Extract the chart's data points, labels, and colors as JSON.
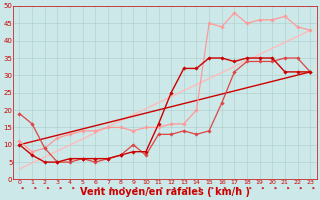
{
  "bg_color": "#cce8e8",
  "grid_color": "#aacccc",
  "xlabel": "Vent moyen/en rafales ( km/h )",
  "xlabel_color": "#cc0000",
  "xlabel_fontsize": 7,
  "xtick_labels": [
    "0",
    "1",
    "2",
    "3",
    "4",
    "5",
    "6",
    "7",
    "8",
    "9",
    "10",
    "11",
    "12",
    "13",
    "14",
    "15",
    "16",
    "17",
    "18",
    "19",
    "20",
    "21",
    "22",
    "23"
  ],
  "ytick_labels": [
    "0",
    "5",
    "10",
    "15",
    "20",
    "25",
    "30",
    "35",
    "40",
    "45",
    "50"
  ],
  "ytick_values": [
    0,
    5,
    10,
    15,
    20,
    25,
    30,
    35,
    40,
    45,
    50
  ],
  "lines": [
    {
      "x": [
        0,
        1,
        2,
        3,
        4,
        5,
        6,
        7,
        8,
        9,
        10,
        11,
        12,
        13,
        14,
        15,
        16,
        17,
        18,
        19,
        20,
        21,
        22,
        23
      ],
      "y": [
        10,
        7,
        5,
        5,
        6,
        6,
        6,
        6,
        7,
        8,
        8,
        16,
        25,
        32,
        32,
        35,
        35,
        34,
        35,
        35,
        35,
        31,
        31,
        31
      ],
      "color": "#cc0000",
      "lw": 1.0,
      "marker": "D",
      "ms": 1.8,
      "zorder": 6
    },
    {
      "x": [
        0,
        1,
        2,
        3,
        4,
        5,
        6,
        7,
        8,
        9,
        10,
        11,
        12,
        13,
        14,
        15,
        16,
        17,
        18,
        19,
        20,
        21,
        22,
        23
      ],
      "y": [
        19,
        16,
        9,
        5,
        5,
        6,
        5,
        6,
        7,
        10,
        7,
        13,
        13,
        14,
        13,
        14,
        22,
        31,
        34,
        34,
        34,
        35,
        35,
        31
      ],
      "color": "#dd4444",
      "lw": 0.9,
      "marker": "D",
      "ms": 1.8,
      "zorder": 5
    },
    {
      "x": [
        0,
        1,
        2,
        3,
        4,
        5,
        6,
        7,
        8,
        9,
        10,
        11,
        12,
        13,
        14,
        15,
        16,
        17,
        18,
        19,
        20,
        21,
        22,
        23
      ],
      "y": [
        11,
        8,
        9,
        12,
        13,
        14,
        14,
        15,
        15,
        14,
        15,
        15,
        16,
        16,
        20,
        45,
        44,
        48,
        45,
        46,
        46,
        47,
        44,
        43
      ],
      "color": "#ff9999",
      "lw": 0.9,
      "marker": "D",
      "ms": 1.8,
      "zorder": 4
    },
    {
      "x": [
        0,
        23
      ],
      "y": [
        3,
        43
      ],
      "color": "#ffbbbb",
      "lw": 1.0,
      "marker": null,
      "ms": 0,
      "zorder": 2
    },
    {
      "x": [
        0,
        23
      ],
      "y": [
        10,
        31
      ],
      "color": "#cc0000",
      "lw": 1.0,
      "marker": null,
      "ms": 0,
      "zorder": 2
    }
  ],
  "arrows": {
    "x_positions": [
      0,
      1,
      2,
      3,
      4,
      5,
      6,
      7,
      8,
      9,
      10,
      11,
      12,
      13,
      14,
      15,
      16,
      17,
      18,
      19,
      20,
      21,
      22,
      23
    ],
    "y": -2.5,
    "color": "#cc0000",
    "lw": 0.5
  }
}
